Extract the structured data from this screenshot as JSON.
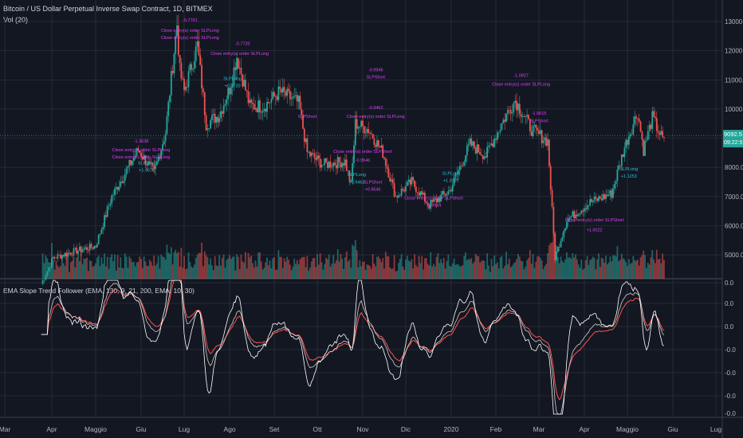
{
  "header": {
    "symbol_title": "Bitcoin / US Dollar Perpetual Inverse Swap Contract, 1D, BITMEX",
    "volume_label": "Vol (20)",
    "indicator_label": "EMA Slope Trend Follower (EMA, 130, 9, 21, 200, EMA, 10, 30)"
  },
  "price_badges": {
    "last_price": "9092.5",
    "countdown": "09:22:57"
  },
  "colors": {
    "background": "#131722",
    "grid": "#363a45",
    "up": "#26a69a",
    "down": "#ef5350",
    "buy_annotation": "#26c6da",
    "sell_annotation": "#e040fb",
    "ind_fast": "#ffffff",
    "ind_slow": "#ff5252",
    "ind_mid": "#d7ccc8"
  },
  "chart_data": [
    {
      "type": "candlestick",
      "title": "Bitcoin / US Dollar Perpetual Inverse Swap Contract, 1D, BITMEX",
      "x_tick_labels": [
        "Mar",
        "Apr",
        "Maggio",
        "Giu",
        "Lug",
        "Ago",
        "Set",
        "Ott",
        "Nov",
        "Dic",
        "2020",
        "Feb",
        "Mar",
        "Apr",
        "Maggio",
        "Giu",
        "Lug"
      ],
      "y_tick_labels": [
        "13000.0",
        "12000.0",
        "11000.0",
        "10000.0",
        "9000.0",
        "8000.0",
        "7000.0",
        "6000.0",
        "5000.0"
      ],
      "ylim": [
        4400,
        13400
      ],
      "close_series": [
        {
          "date": "2019-03-25",
          "close": 4000
        },
        {
          "date": "2019-04-02",
          "close": 4900
        },
        {
          "date": "2019-04-15",
          "close": 5100
        },
        {
          "date": "2019-05-01",
          "close": 5300
        },
        {
          "date": "2019-05-12",
          "close": 7000
        },
        {
          "date": "2019-05-30",
          "close": 8600
        },
        {
          "date": "2019-06-10",
          "close": 7800
        },
        {
          "date": "2019-06-18",
          "close": 9200
        },
        {
          "date": "2019-06-26",
          "close": 12900
        },
        {
          "date": "2019-06-28",
          "close": 11300
        },
        {
          "date": "2019-07-01",
          "close": 10600
        },
        {
          "date": "2019-07-10",
          "close": 12200
        },
        {
          "date": "2019-07-16",
          "close": 9500
        },
        {
          "date": "2019-07-25",
          "close": 9800
        },
        {
          "date": "2019-08-01",
          "close": 10700
        },
        {
          "date": "2019-08-06",
          "close": 11800
        },
        {
          "date": "2019-08-15",
          "close": 10100
        },
        {
          "date": "2019-08-25",
          "close": 10100
        },
        {
          "date": "2019-09-05",
          "close": 10600
        },
        {
          "date": "2019-09-18",
          "close": 10200
        },
        {
          "date": "2019-09-24",
          "close": 8500
        },
        {
          "date": "2019-10-05",
          "close": 8100
        },
        {
          "date": "2019-10-20",
          "close": 8200
        },
        {
          "date": "2019-10-24",
          "close": 7400
        },
        {
          "date": "2019-10-27",
          "close": 9500
        },
        {
          "date": "2019-11-05",
          "close": 9300
        },
        {
          "date": "2019-11-15",
          "close": 8500
        },
        {
          "date": "2019-11-24",
          "close": 7000
        },
        {
          "date": "2019-12-05",
          "close": 7500
        },
        {
          "date": "2019-12-17",
          "close": 6700
        },
        {
          "date": "2019-12-31",
          "close": 7200
        },
        {
          "date": "2020-01-14",
          "close": 8800
        },
        {
          "date": "2020-01-25",
          "close": 8400
        },
        {
          "date": "2020-02-08",
          "close": 9800
        },
        {
          "date": "2020-02-14",
          "close": 10300
        },
        {
          "date": "2020-02-25",
          "close": 9300
        },
        {
          "date": "2020-03-07",
          "close": 8900
        },
        {
          "date": "2020-03-12",
          "close": 4900
        },
        {
          "date": "2020-03-20",
          "close": 6200
        },
        {
          "date": "2020-04-05",
          "close": 6800
        },
        {
          "date": "2020-04-20",
          "close": 7100
        },
        {
          "date": "2020-04-29",
          "close": 8700
        },
        {
          "date": "2020-05-08",
          "close": 9900
        },
        {
          "date": "2020-05-12",
          "close": 8600
        },
        {
          "date": "2020-05-18",
          "close": 9700
        },
        {
          "date": "2020-05-26",
          "close": 8850
        }
      ]
    },
    {
      "type": "bar",
      "title": "Vol (20)",
      "note": "daily volume histogram, values not labeled"
    },
    {
      "type": "line",
      "title": "EMA Slope Trend Follower (EMA, 130, 9, 21, 200, EMA, 10, 30)",
      "y_tick_labels": [
        "0.0",
        "0.0",
        "0.0",
        "-0.0",
        "-0.0",
        "-0.0",
        "-0.0"
      ],
      "series": []
    }
  ],
  "trade_annotations": [
    {
      "text": "-1.3638",
      "date": "2019-06-01",
      "price": 8850,
      "kind": "sell"
    },
    {
      "text": "Close entry(s) order SLPLong",
      "date": "2019-06-01",
      "price": 8550,
      "kind": "sell"
    },
    {
      "text": "Close entry(s) order SLPLong",
      "date": "2019-06-01",
      "price": 8300,
      "kind": "sell"
    },
    {
      "text": "SLPLong",
      "date": "2019-06-05",
      "price": 8100,
      "kind": "buy"
    },
    {
      "text": "+1.9576",
      "date": "2019-06-05",
      "price": 7850,
      "kind": "buy"
    },
    {
      "text": "-0.7701",
      "date": "2019-07-05",
      "price": 13000,
      "kind": "sell"
    },
    {
      "text": "Close entry(s) order SLPLong",
      "date": "2019-07-05",
      "price": 12650,
      "kind": "sell"
    },
    {
      "text": "Close entry(s) order SLPLong",
      "date": "2019-07-05",
      "price": 12400,
      "kind": "sell"
    },
    {
      "text": "-0.7720",
      "date": "2019-08-10",
      "price": 12200,
      "kind": "sell"
    },
    {
      "text": "Close entry(s) order SLPLong",
      "date": "2019-08-08",
      "price": 11850,
      "kind": "sell"
    },
    {
      "text": "SLPLong",
      "date": "2019-08-03",
      "price": 11000,
      "kind": "buy"
    },
    {
      "text": "+0.7720",
      "date": "2019-08-03",
      "price": 10750,
      "kind": "buy"
    },
    {
      "text": "-0.9946",
      "date": "2019-11-10",
      "price": 11300,
      "kind": "sell"
    },
    {
      "text": "SLPShort",
      "date": "2019-11-10",
      "price": 11050,
      "kind": "sell"
    },
    {
      "text": "-0.9462",
      "date": "2019-11-10",
      "price": 10000,
      "kind": "sell"
    },
    {
      "text": "Close entry(s) order SLPLong",
      "date": "2019-11-10",
      "price": 9700,
      "kind": "sell"
    },
    {
      "text": "SLPShort",
      "date": "2019-09-24",
      "price": 9700,
      "kind": "sell"
    },
    {
      "text": "Close entry(s) order SLPShort",
      "date": "2019-11-01",
      "price": 8500,
      "kind": "sell"
    },
    {
      "text": "-0.9546",
      "date": "2019-11-01",
      "price": 8200,
      "kind": "sell"
    },
    {
      "text": "SLPLong",
      "date": "2019-10-28",
      "price": 7700,
      "kind": "buy"
    },
    {
      "text": "+0.9462",
      "date": "2019-10-28",
      "price": 7450,
      "kind": "buy"
    },
    {
      "text": "SLPShort",
      "date": "2019-11-08",
      "price": 7450,
      "kind": "sell"
    },
    {
      "text": "+0.9546",
      "date": "2019-11-08",
      "price": 7200,
      "kind": "sell"
    },
    {
      "text": "Close entry(s) order SLPShort",
      "date": "2019-12-20",
      "price": 6900,
      "kind": "sell"
    },
    {
      "text": "-0.9944",
      "date": "2019-12-20",
      "price": 6650,
      "kind": "sell"
    },
    {
      "text": "SLPLong",
      "date": "2020-01-01",
      "price": 7750,
      "kind": "buy"
    },
    {
      "text": "+1.0927",
      "date": "2020-01-01",
      "price": 7500,
      "kind": "buy"
    },
    {
      "text": "-1.0927",
      "date": "2020-02-18",
      "price": 11100,
      "kind": "sell"
    },
    {
      "text": "Close entry(s) order SLPLong",
      "date": "2020-02-18",
      "price": 10800,
      "kind": "sell"
    },
    {
      "text": "-1.0615",
      "date": "2020-03-01",
      "price": 9800,
      "kind": "sell"
    },
    {
      "text": "SLPShort",
      "date": "2020-03-01",
      "price": 9550,
      "kind": "sell"
    },
    {
      "text": "Close entry(s) order SLPShort",
      "date": "2020-04-08",
      "price": 6150,
      "kind": "sell"
    },
    {
      "text": "+1.0022",
      "date": "2020-04-08",
      "price": 5800,
      "kind": "sell"
    },
    {
      "text": "SLPLong",
      "date": "2020-05-02",
      "price": 7900,
      "kind": "buy"
    },
    {
      "text": "+1.1253",
      "date": "2020-05-02",
      "price": 7650,
      "kind": "buy"
    }
  ]
}
